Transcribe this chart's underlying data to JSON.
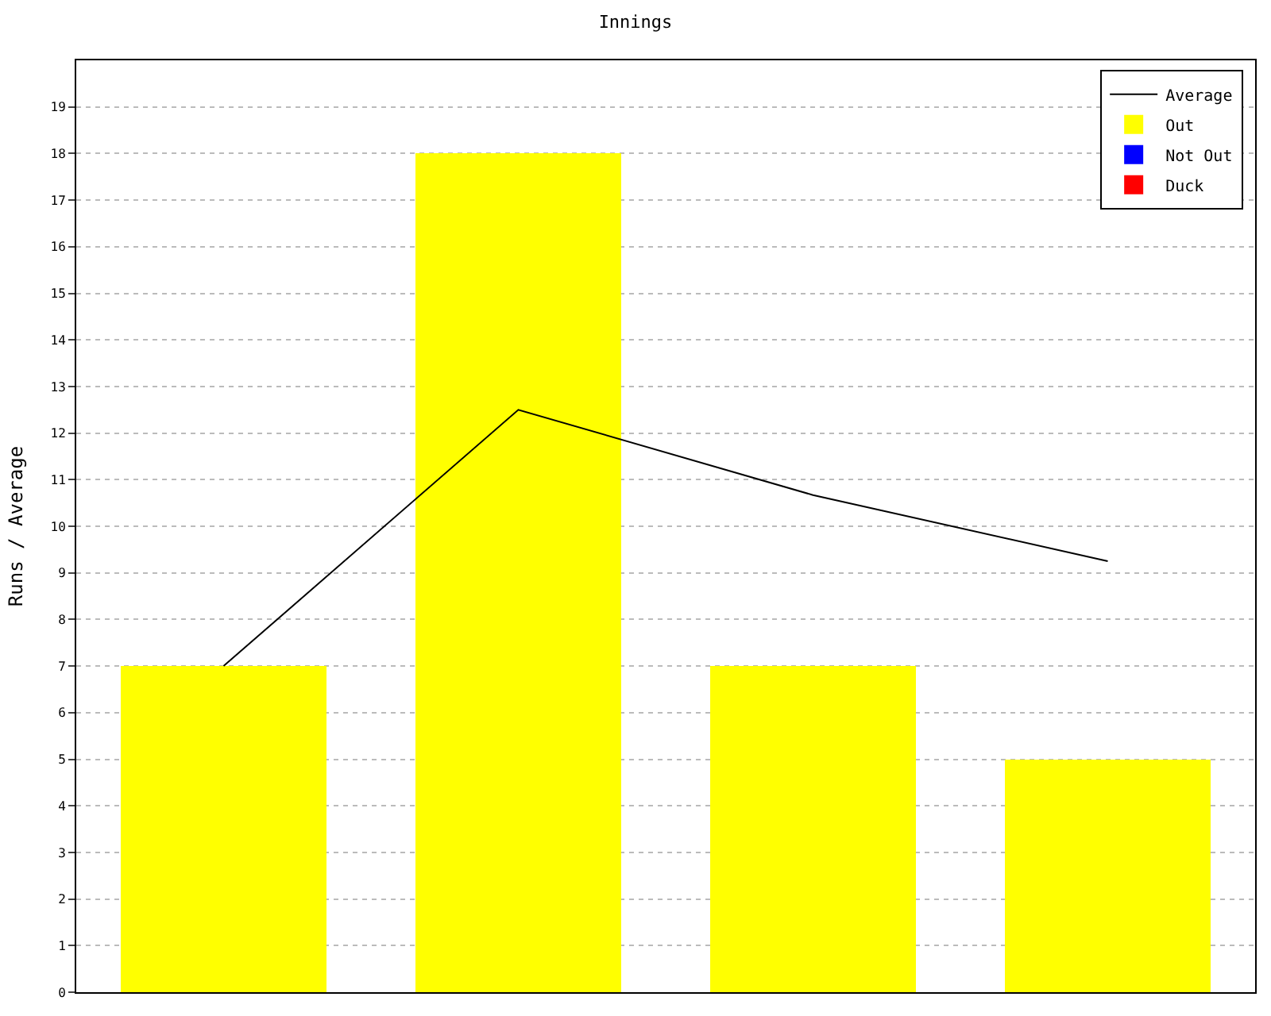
{
  "chart_data": {
    "type": "bar",
    "title": "Innings",
    "ylabel": "Runs / Average",
    "stacked": true,
    "categories": [
      null,
      null,
      null,
      null
    ],
    "series": [
      {
        "name": "Average",
        "type": "line",
        "color": "#000000",
        "values": [
          7,
          12.5,
          10.67,
          9.25
        ]
      },
      {
        "name": "Out",
        "color": "#ffff00",
        "values": [
          7,
          18,
          7,
          5
        ]
      },
      {
        "name": "Not Out",
        "color": "#0000ff",
        "values": [
          null,
          null,
          null,
          null
        ]
      },
      {
        "name": "Duck",
        "color": "#ff0000",
        "values": [
          null,
          null,
          null,
          null
        ]
      }
    ],
    "ylim": [
      0,
      20
    ],
    "yticks": [
      0,
      1,
      2,
      3,
      4,
      5,
      6,
      7,
      8,
      9,
      10,
      11,
      12,
      13,
      14,
      15,
      16,
      17,
      18,
      19
    ],
    "grid": "y",
    "legend": "top right",
    "marker": "none",
    "line_style": "solid"
  }
}
